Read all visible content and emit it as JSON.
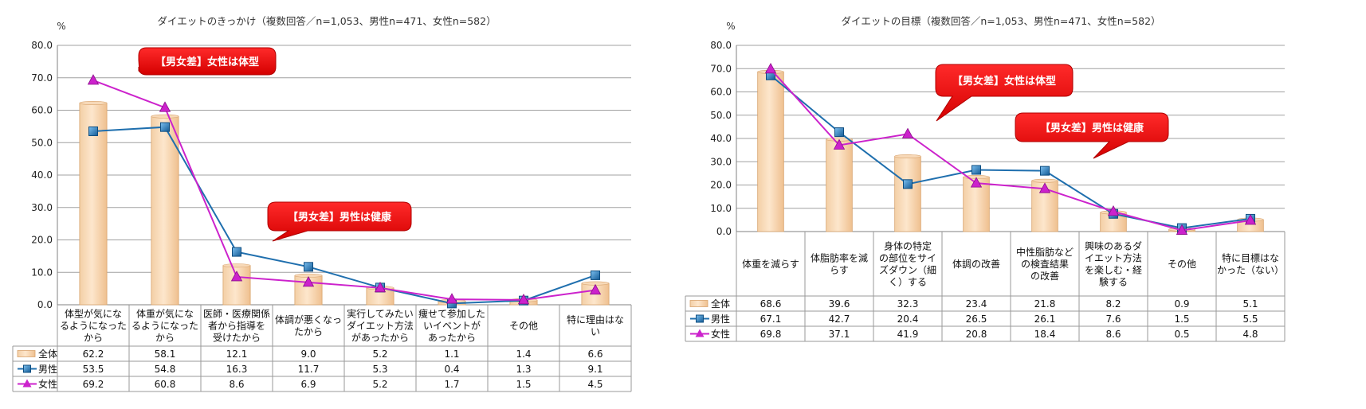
{
  "colors": {
    "bar_fill_light": "#fde4c8",
    "bar_fill_dark": "#f0c596",
    "bar_stroke": "#d9a46e",
    "male": "#1f6fae",
    "male_marker": "#2b8ad6",
    "female": "#cc22cc",
    "callout": "#e00000",
    "grid": "#a0a0a0"
  },
  "chart_data": [
    {
      "type": "bar+line",
      "title": "ダイエットのきっかけ（複数回答／n=1,053、男性n=471、女性n=582）",
      "ylabel": "%",
      "ylim": [
        0,
        80
      ],
      "yticks": [
        "0.0",
        "10.0",
        "20.0",
        "30.0",
        "40.0",
        "50.0",
        "60.0",
        "70.0",
        "80.0"
      ],
      "grid": true,
      "categories": [
        [
          "体型が気にな",
          "るようになった",
          "から"
        ],
        [
          "体重が気にな",
          "るようになった",
          "から"
        ],
        [
          "医師・医療関係",
          "者から指導を",
          "受けたから"
        ],
        [
          "体調が悪くなっ",
          "たから"
        ],
        [
          "実行してみたい",
          "ダイエット方法",
          "があったから"
        ],
        [
          "痩せて参加した",
          "いイベントが",
          "あったから"
        ],
        [
          "その他"
        ],
        [
          "特に理由はな",
          "い"
        ]
      ],
      "series": [
        {
          "name": "全体",
          "kind": "bar",
          "values": [
            62.2,
            58.1,
            12.1,
            9.0,
            5.2,
            1.1,
            1.4,
            6.6
          ],
          "labels": [
            "62.2",
            "58.1",
            "12.1",
            "9.0",
            "5.2",
            "1.1",
            "1.4",
            "6.6"
          ]
        },
        {
          "name": "男性",
          "kind": "line",
          "values": [
            53.5,
            54.8,
            16.3,
            11.7,
            5.3,
            0.4,
            1.3,
            9.1
          ],
          "labels": [
            "53.5",
            "54.8",
            "16.3",
            "11.7",
            "5.3",
            "0.4",
            "1.3",
            "9.1"
          ]
        },
        {
          "name": "女性",
          "kind": "line",
          "values": [
            69.2,
            60.8,
            8.6,
            6.9,
            5.2,
            1.7,
            1.5,
            4.5
          ],
          "labels": [
            "69.2",
            "60.8",
            "8.6",
            "6.9",
            "5.2",
            "1.7",
            "1.5",
            "4.5"
          ]
        }
      ],
      "annotations": [
        "【男女差】女性は体型",
        "【男女差】男性は健康"
      ]
    },
    {
      "type": "bar+line",
      "title": "ダイエットの目標（複数回答／n=1,053、男性n=471、女性n=582）",
      "ylabel": "%",
      "ylim": [
        0,
        80
      ],
      "yticks": [
        "0.0",
        "10.0",
        "20.0",
        "30.0",
        "40.0",
        "50.0",
        "60.0",
        "70.0",
        "80.0"
      ],
      "grid": true,
      "categories": [
        [
          "体重を減らす"
        ],
        [
          "体脂肪率を減",
          "らす"
        ],
        [
          "身体の特定",
          "の部位をサイ",
          "ズダウン（細",
          "く）する"
        ],
        [
          "体調の改善"
        ],
        [
          "中性脂肪など",
          "の検査結果",
          "の改善"
        ],
        [
          "興味のあるダ",
          "イエット方法",
          "を楽しむ・経",
          "験する"
        ],
        [
          "その他"
        ],
        [
          "特に目標はな",
          "かった（ない）"
        ]
      ],
      "series": [
        {
          "name": "全体",
          "kind": "bar",
          "values": [
            68.6,
            39.6,
            32.3,
            23.4,
            21.8,
            8.2,
            0.9,
            5.1
          ],
          "labels": [
            "68.6",
            "39.6",
            "32.3",
            "23.4",
            "21.8",
            "8.2",
            "0.9",
            "5.1"
          ]
        },
        {
          "name": "男性",
          "kind": "line",
          "values": [
            67.1,
            42.7,
            20.4,
            26.5,
            26.1,
            7.6,
            1.5,
            5.5
          ],
          "labels": [
            "67.1",
            "42.7",
            "20.4",
            "26.5",
            "26.1",
            "7.6",
            "1.5",
            "5.5"
          ]
        },
        {
          "name": "女性",
          "kind": "line",
          "values": [
            69.8,
            37.1,
            41.9,
            20.8,
            18.4,
            8.6,
            0.5,
            4.8
          ],
          "labels": [
            "69.8",
            "37.1",
            "41.9",
            "20.8",
            "18.4",
            "8.6",
            "0.5",
            "4.8"
          ]
        }
      ],
      "annotations": [
        "【男女差】女性は体型",
        "【男女差】男性は健康"
      ]
    }
  ]
}
